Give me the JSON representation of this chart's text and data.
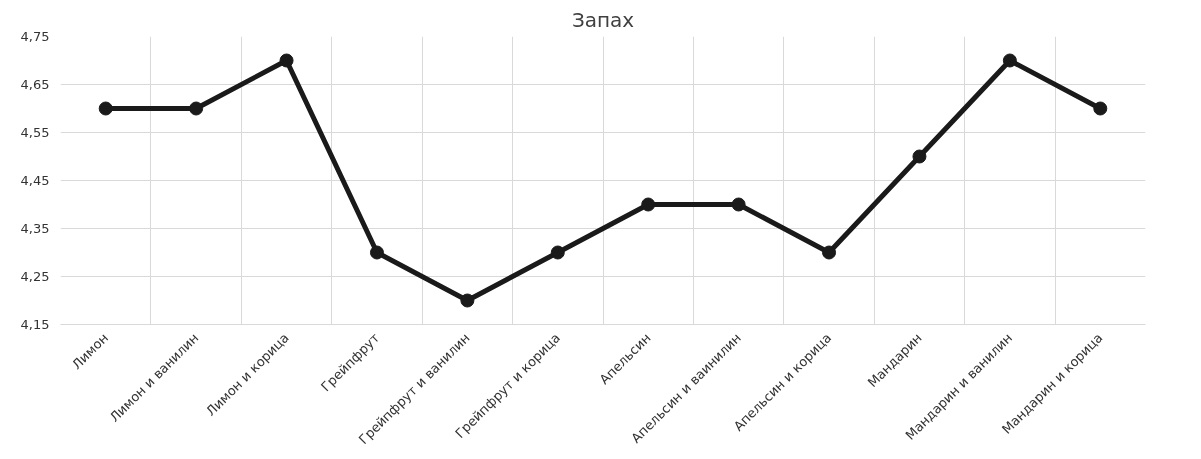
{
  "chart_data": {
    "type": "line",
    "title": "Запах",
    "categories": [
      "Лимон",
      "Лимон и ванилин",
      "Лимон и корица",
      "Грейпфрут",
      "Грейпфрут и ванилин",
      "Грейпфрут и корица",
      "Апельсин",
      "Апельсин и ваинилин",
      "Апельсин и корица",
      "Мандарин",
      "Мандарин и ванилин",
      "Мандарин и корица"
    ],
    "series": [
      {
        "color": "#1a1a1a",
        "values": [
          4.6,
          4.6,
          4.7,
          4.3,
          4.2,
          4.3,
          4.4,
          4.4,
          4.3,
          4.5,
          4.7,
          4.6
        ]
      }
    ],
    "ylim": [
      4.15,
      4.75
    ],
    "yticks": [
      {
        "value": 4.15,
        "label": "4,15"
      },
      {
        "value": 4.25,
        "label": "4,25"
      },
      {
        "value": 4.35,
        "label": "4,35"
      },
      {
        "value": 4.45,
        "label": "4,45"
      },
      {
        "value": 4.55,
        "label": "4,55"
      },
      {
        "value": 4.65,
        "label": "4,65"
      },
      {
        "value": 4.75,
        "label": "4,75"
      }
    ],
    "grid": true,
    "marker": "circle",
    "line_style": "solid"
  }
}
